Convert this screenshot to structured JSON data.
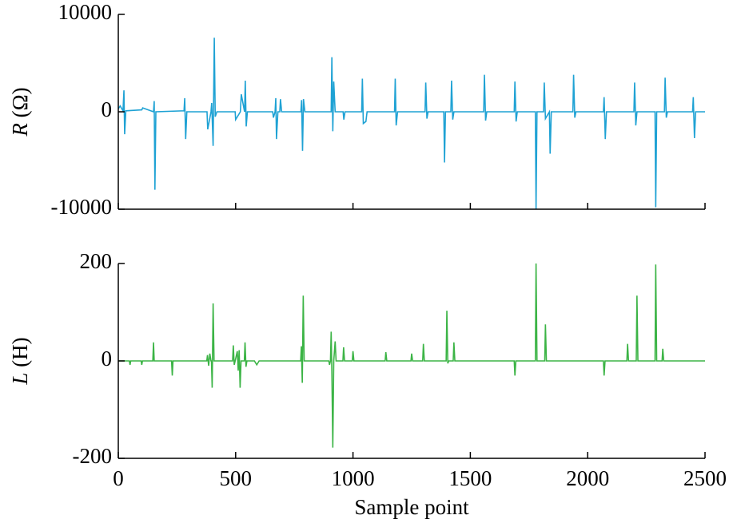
{
  "chart_data": [
    {
      "type": "line",
      "ylabel": {
        "symbol": "R",
        "unit": "(Ω)"
      },
      "color": "#1fa2d4",
      "xlim": [
        0,
        2500
      ],
      "ylim": [
        -10000,
        10000
      ],
      "yticks": [
        -10000,
        0,
        10000
      ],
      "xticks": [
        0,
        500,
        1000,
        1500,
        2000,
        2500
      ],
      "show_xtick_labels": false,
      "x": [
        0,
        8,
        20,
        24,
        27,
        32,
        100,
        104,
        150,
        153,
        156,
        160,
        280,
        283,
        287,
        292,
        378,
        381,
        395,
        398,
        404,
        409,
        413,
        420,
        498,
        500,
        520,
        524,
        538,
        541,
        545,
        550,
        658,
        661,
        668,
        671,
        674,
        680,
        688,
        691,
        696,
        778,
        781,
        785,
        789,
        795,
        907,
        910,
        914,
        918,
        924,
        958,
        961,
        966,
        1037,
        1040,
        1044,
        1055,
        1060,
        1177,
        1180,
        1184,
        1190,
        1307,
        1310,
        1315,
        1320,
        1387,
        1390,
        1394,
        1417,
        1420,
        1425,
        1430,
        1557,
        1560,
        1565,
        1570,
        1687,
        1690,
        1695,
        1700,
        1777,
        1780,
        1784,
        1812,
        1815,
        1820,
        1837,
        1840,
        1845,
        1937,
        1940,
        1945,
        1950,
        2067,
        2070,
        2075,
        2080,
        2197,
        2200,
        2205,
        2210,
        2287,
        2290,
        2294,
        2327,
        2330,
        2335,
        2340,
        2447,
        2450,
        2455,
        2460,
        2500
      ],
      "values": [
        300,
        600,
        100,
        2200,
        -2300,
        100,
        200,
        400,
        0,
        1100,
        -8000,
        0,
        100,
        1400,
        -2800,
        0,
        0,
        -1800,
        0,
        900,
        -3500,
        7600,
        -500,
        0,
        0,
        -800,
        0,
        1800,
        0,
        3200,
        -1500,
        0,
        0,
        -600,
        0,
        1400,
        -2800,
        0,
        0,
        1300,
        0,
        0,
        1200,
        -4000,
        1300,
        0,
        0,
        5600,
        -2000,
        3100,
        0,
        0,
        -800,
        0,
        0,
        3400,
        -1200,
        -1000,
        0,
        0,
        3400,
        -1400,
        0,
        0,
        3000,
        -700,
        0,
        0,
        -5200,
        0,
        0,
        3200,
        -800,
        0,
        0,
        3800,
        -900,
        0,
        0,
        3100,
        -1000,
        0,
        0,
        -10000,
        0,
        0,
        3000,
        -700,
        0,
        -4300,
        0,
        0,
        3800,
        -600,
        0,
        0,
        1500,
        -2800,
        0,
        0,
        3000,
        -1400,
        0,
        0,
        -9800,
        0,
        0,
        3500,
        -600,
        0,
        0,
        1500,
        -2700,
        0,
        0
      ]
    },
    {
      "type": "line",
      "ylabel": {
        "symbol": "L",
        "unit": "(H)"
      },
      "xlabel": "Sample point",
      "color": "#3cb446",
      "xlim": [
        0,
        2500
      ],
      "ylim": [
        -200,
        200
      ],
      "yticks": [
        -200,
        0,
        200
      ],
      "xticks": [
        0,
        500,
        1000,
        1500,
        2000,
        2500
      ],
      "show_xtick_labels": true,
      "x": [
        0,
        47,
        50,
        53,
        97,
        100,
        103,
        147,
        150,
        153,
        227,
        230,
        233,
        377,
        380,
        385,
        390,
        395,
        397,
        400,
        404,
        408,
        487,
        490,
        494,
        498,
        507,
        511,
        515,
        519,
        523,
        537,
        540,
        544,
        548,
        580,
        590,
        600,
        777,
        780,
        784,
        788,
        792,
        897,
        900,
        904,
        907,
        910,
        914,
        918,
        924,
        928,
        957,
        960,
        964,
        997,
        1000,
        1004,
        1137,
        1140,
        1144,
        1247,
        1250,
        1254,
        1297,
        1300,
        1304,
        1397,
        1400,
        1404,
        1408,
        1427,
        1430,
        1434,
        1687,
        1690,
        1694,
        1777,
        1780,
        1784,
        1817,
        1820,
        1824,
        2067,
        2070,
        2074,
        2167,
        2170,
        2174,
        2207,
        2210,
        2214,
        2287,
        2290,
        2294,
        2317,
        2320,
        2324,
        2500
      ],
      "values": [
        0,
        0,
        -8,
        0,
        0,
        -8,
        0,
        0,
        38,
        0,
        0,
        -30,
        0,
        0,
        12,
        -10,
        15,
        0,
        0,
        -55,
        118,
        0,
        0,
        32,
        -8,
        0,
        20,
        -20,
        22,
        -55,
        0,
        0,
        38,
        -12,
        0,
        0,
        -8,
        0,
        0,
        30,
        -45,
        134,
        0,
        0,
        -8,
        0,
        60,
        -22,
        -178,
        0,
        40,
        0,
        0,
        28,
        0,
        0,
        20,
        0,
        0,
        18,
        0,
        0,
        15,
        0,
        0,
        35,
        0,
        0,
        103,
        -5,
        0,
        0,
        38,
        0,
        0,
        -30,
        0,
        0,
        200,
        0,
        0,
        75,
        0,
        0,
        -30,
        0,
        0,
        35,
        0,
        0,
        134,
        0,
        0,
        198,
        0,
        0,
        25,
        0,
        0
      ]
    }
  ]
}
